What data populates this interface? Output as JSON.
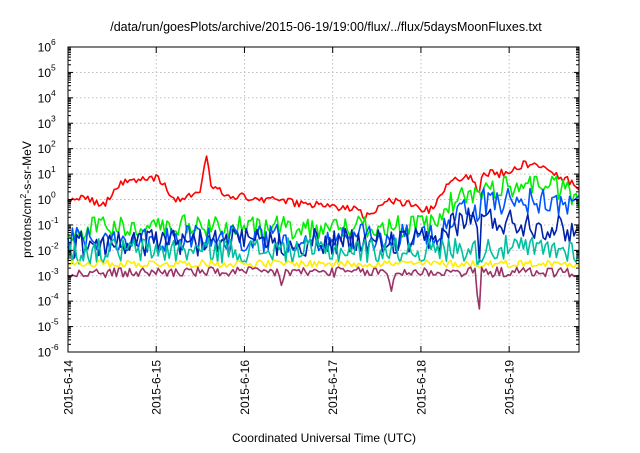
{
  "chart_data": {
    "type": "line",
    "title": "/data/run/goesPlots/archive/2015-06-19/19:00/flux/../flux/5daysMoonFluxes.txt",
    "xlabel": "Coordinated Universal Time (UTC)",
    "ylabel": "protons/cm²-s-sr-MeV",
    "ylabel_parts": {
      "pre": "protons/cm",
      "sup": "2",
      "post": "-s-sr-MeV"
    },
    "yscale": "log",
    "ylim": [
      1e-06,
      1000000
    ],
    "y_ticks": [
      {
        "value": 1e-06,
        "base": "10",
        "exp": "-6"
      },
      {
        "value": 1e-05,
        "base": "10",
        "exp": "-5"
      },
      {
        "value": 0.0001,
        "base": "10",
        "exp": "-4"
      },
      {
        "value": 0.001,
        "base": "10",
        "exp": "-3"
      },
      {
        "value": 0.01,
        "base": "10",
        "exp": "-2"
      },
      {
        "value": 0.1,
        "base": "10",
        "exp": "-1"
      },
      {
        "value": 1,
        "base": "10",
        "exp": "0"
      },
      {
        "value": 10,
        "base": "10",
        "exp": "1"
      },
      {
        "value": 100,
        "base": "10",
        "exp": "2"
      },
      {
        "value": 1000,
        "base": "10",
        "exp": "3"
      },
      {
        "value": 10000,
        "base": "10",
        "exp": "4"
      },
      {
        "value": 100000,
        "base": "10",
        "exp": "5"
      },
      {
        "value": 1000000,
        "base": "10",
        "exp": "6"
      }
    ],
    "xlim": [
      "2015-06-14T00:00",
      "2015-06-19T19:00"
    ],
    "x_ticks": [
      "2015-6-14",
      "2015-6-15",
      "2015-6-16",
      "2015-6-17",
      "2015-6-18",
      "2015-6-19"
    ],
    "x_tick_dates": [
      "2015-06-14T00:00",
      "2015-06-15T00:00",
      "2015-06-16T00:00",
      "2015-06-17T00:00",
      "2015-06-18T00:00",
      "2015-06-19T00:00"
    ],
    "grid": true,
    "legend": "none",
    "series": [
      {
        "color": "#ff0000",
        "noise": 0.15,
        "points": [
          [
            "2015-06-14T00:00",
            1.0
          ],
          [
            "2015-06-14T03:00",
            1.3
          ],
          [
            "2015-06-14T06:00",
            0.9
          ],
          [
            "2015-06-14T10:00",
            0.6
          ],
          [
            "2015-06-14T14:00",
            4.0
          ],
          [
            "2015-06-14T20:00",
            6.0
          ],
          [
            "2015-06-15T00:00",
            6.5
          ],
          [
            "2015-06-15T02:00",
            4.5
          ],
          [
            "2015-06-15T05:00",
            1.0
          ],
          [
            "2015-06-15T10:00",
            1.5
          ],
          [
            "2015-06-15T12:00",
            2.5
          ],
          [
            "2015-06-15T13:30",
            70.0
          ],
          [
            "2015-06-15T15:00",
            3.0
          ],
          [
            "2015-06-15T20:00",
            1.5
          ],
          [
            "2015-06-16T04:00",
            1.0
          ],
          [
            "2015-06-16T12:00",
            0.8
          ],
          [
            "2015-06-16T20:00",
            0.6
          ],
          [
            "2015-06-17T00:00",
            0.5
          ],
          [
            "2015-06-17T06:00",
            0.4
          ],
          [
            "2015-06-17T09:00",
            0.2
          ],
          [
            "2015-06-17T12:00",
            0.4
          ],
          [
            "2015-06-17T16:00",
            0.9
          ],
          [
            "2015-06-17T20:00",
            0.7
          ],
          [
            "2015-06-18T01:00",
            0.4
          ],
          [
            "2015-06-18T04:00",
            0.4
          ],
          [
            "2015-06-18T05:00",
            1.5
          ],
          [
            "2015-06-18T08:00",
            6.0
          ],
          [
            "2015-06-18T12:00",
            7.0
          ],
          [
            "2015-06-18T14:00",
            8.0
          ],
          [
            "2015-06-18T15:30",
            1.5
          ],
          [
            "2015-06-18T17:00",
            12.0
          ],
          [
            "2015-06-18T21:00",
            10.0
          ],
          [
            "2015-06-19T01:00",
            15.0
          ],
          [
            "2015-06-19T04:00",
            25.0
          ],
          [
            "2015-06-19T09:00",
            25.0
          ],
          [
            "2015-06-19T13:00",
            10.0
          ],
          [
            "2015-06-19T17:00",
            4.5
          ],
          [
            "2015-06-19T19:00",
            3.0
          ]
        ]
      },
      {
        "color": "#00ee00",
        "noise": 0.45,
        "points": [
          [
            "2015-06-14T00:00",
            0.06
          ],
          [
            "2015-06-14T06:00",
            0.07
          ],
          [
            "2015-06-14T12:00",
            0.09
          ],
          [
            "2015-06-15T00:00",
            0.09
          ],
          [
            "2015-06-15T12:00",
            0.09
          ],
          [
            "2015-06-16T00:00",
            0.08
          ],
          [
            "2015-06-16T12:00",
            0.08
          ],
          [
            "2015-06-17T00:00",
            0.08
          ],
          [
            "2015-06-17T12:00",
            0.09
          ],
          [
            "2015-06-18T00:00",
            0.09
          ],
          [
            "2015-06-18T04:00",
            0.09
          ],
          [
            "2015-06-18T06:00",
            0.3
          ],
          [
            "2015-06-18T09:00",
            1.0
          ],
          [
            "2015-06-18T14:00",
            1.5
          ],
          [
            "2015-06-18T15:30",
            1.2
          ],
          [
            "2015-06-18T17:00",
            3.0
          ],
          [
            "2015-06-18T22:00",
            3.0
          ],
          [
            "2015-06-19T05:00",
            4.0
          ],
          [
            "2015-06-19T10:00",
            4.5
          ],
          [
            "2015-06-19T15:00",
            2.0
          ],
          [
            "2015-06-19T19:00",
            1.0
          ]
        ]
      },
      {
        "color": "#0055ff",
        "noise": 0.55,
        "points": [
          [
            "2015-06-14T00:00",
            0.025
          ],
          [
            "2015-06-14T12:00",
            0.03
          ],
          [
            "2015-06-15T00:00",
            0.03
          ],
          [
            "2015-06-15T12:00",
            0.03
          ],
          [
            "2015-06-16T00:00",
            0.03
          ],
          [
            "2015-06-16T12:00",
            0.03
          ],
          [
            "2015-06-17T00:00",
            0.03
          ],
          [
            "2015-06-17T12:00",
            0.03
          ],
          [
            "2015-06-18T00:00",
            0.03
          ],
          [
            "2015-06-18T04:00",
            0.03
          ],
          [
            "2015-06-18T07:00",
            0.15
          ],
          [
            "2015-06-18T10:00",
            0.4
          ],
          [
            "2015-06-18T14:00",
            0.5
          ],
          [
            "2015-06-18T15:30",
            0.3
          ],
          [
            "2015-06-18T17:00",
            0.8
          ],
          [
            "2015-06-18T22:00",
            0.9
          ],
          [
            "2015-06-19T06:00",
            0.9
          ],
          [
            "2015-06-19T12:00",
            0.8
          ],
          [
            "2015-06-19T19:00",
            0.45
          ]
        ]
      },
      {
        "color": "#0022aa",
        "noise": 0.55,
        "points": [
          [
            "2015-06-14T00:00",
            0.015
          ],
          [
            "2015-06-14T12:00",
            0.02
          ],
          [
            "2015-06-15T00:00",
            0.02
          ],
          [
            "2015-06-15T12:00",
            0.02
          ],
          [
            "2015-06-16T00:00",
            0.02
          ],
          [
            "2015-06-16T12:00",
            0.02
          ],
          [
            "2015-06-17T00:00",
            0.02
          ],
          [
            "2015-06-17T12:00",
            0.02
          ],
          [
            "2015-06-18T00:00",
            0.02
          ],
          [
            "2015-06-18T04:00",
            0.02
          ],
          [
            "2015-06-18T08:00",
            0.1
          ],
          [
            "2015-06-18T12:00",
            0.15
          ],
          [
            "2015-06-18T15:00",
            0.2
          ],
          [
            "2015-06-18T15:45",
            0.005
          ],
          [
            "2015-06-18T16:30",
            0.15
          ],
          [
            "2015-06-18T20:00",
            0.15
          ],
          [
            "2015-06-19T04:00",
            0.12
          ],
          [
            "2015-06-19T12:00",
            0.08
          ],
          [
            "2015-06-19T19:00",
            0.05
          ]
        ]
      },
      {
        "color": "#00c0a0",
        "noise": 0.5,
        "points": [
          [
            "2015-06-14T00:00",
            0.008
          ],
          [
            "2015-06-14T12:00",
            0.01
          ],
          [
            "2015-06-15T00:00",
            0.01
          ],
          [
            "2015-06-16T00:00",
            0.01
          ],
          [
            "2015-06-17T00:00",
            0.01
          ],
          [
            "2015-06-18T00:00",
            0.01
          ],
          [
            "2015-06-18T06:00",
            0.01
          ],
          [
            "2015-06-18T10:00",
            0.012
          ],
          [
            "2015-06-18T14:00",
            0.012
          ],
          [
            "2015-06-18T15:30",
            0.006
          ],
          [
            "2015-06-18T17:00",
            0.012
          ],
          [
            "2015-06-19T00:00",
            0.012
          ],
          [
            "2015-06-19T10:00",
            0.011
          ],
          [
            "2015-06-19T19:00",
            0.01
          ]
        ]
      },
      {
        "color": "#ffee00",
        "noise": 0.15,
        "points": [
          [
            "2015-06-14T00:00",
            0.003
          ],
          [
            "2015-06-15T00:00",
            0.003
          ],
          [
            "2015-06-16T00:00",
            0.003
          ],
          [
            "2015-06-17T00:00",
            0.003
          ],
          [
            "2015-06-18T00:00",
            0.003
          ],
          [
            "2015-06-18T15:00",
            0.003
          ],
          [
            "2015-06-18T15:45",
            0.0015
          ],
          [
            "2015-06-18T16:30",
            0.003
          ],
          [
            "2015-06-19T19:00",
            0.003
          ]
        ]
      },
      {
        "color": "#993366",
        "noise": 0.2,
        "points": [
          [
            "2015-06-14T00:00",
            0.0012
          ],
          [
            "2015-06-14T01:30",
            0.0012
          ],
          [
            "2015-06-14T02:00",
            0.0007
          ],
          [
            "2015-06-14T02:30",
            0.0012
          ],
          [
            "2015-06-15T00:00",
            0.0014
          ],
          [
            "2015-06-16T00:00",
            0.0014
          ],
          [
            "2015-06-16T09:00",
            0.0014
          ],
          [
            "2015-06-16T10:00",
            0.0005
          ],
          [
            "2015-06-16T11:00",
            0.0014
          ],
          [
            "2015-06-17T00:00",
            0.0014
          ],
          [
            "2015-06-17T15:00",
            0.0014
          ],
          [
            "2015-06-17T16:00",
            0.0002
          ],
          [
            "2015-06-17T17:00",
            0.0014
          ],
          [
            "2015-06-18T00:00",
            0.0014
          ],
          [
            "2015-06-18T15:00",
            0.0014
          ],
          [
            "2015-06-18T15:45",
            2.5e-05
          ],
          [
            "2015-06-18T16:30",
            0.0014
          ],
          [
            "2015-06-19T12:00",
            0.0014
          ],
          [
            "2015-06-19T19:00",
            0.0013
          ]
        ]
      }
    ]
  }
}
